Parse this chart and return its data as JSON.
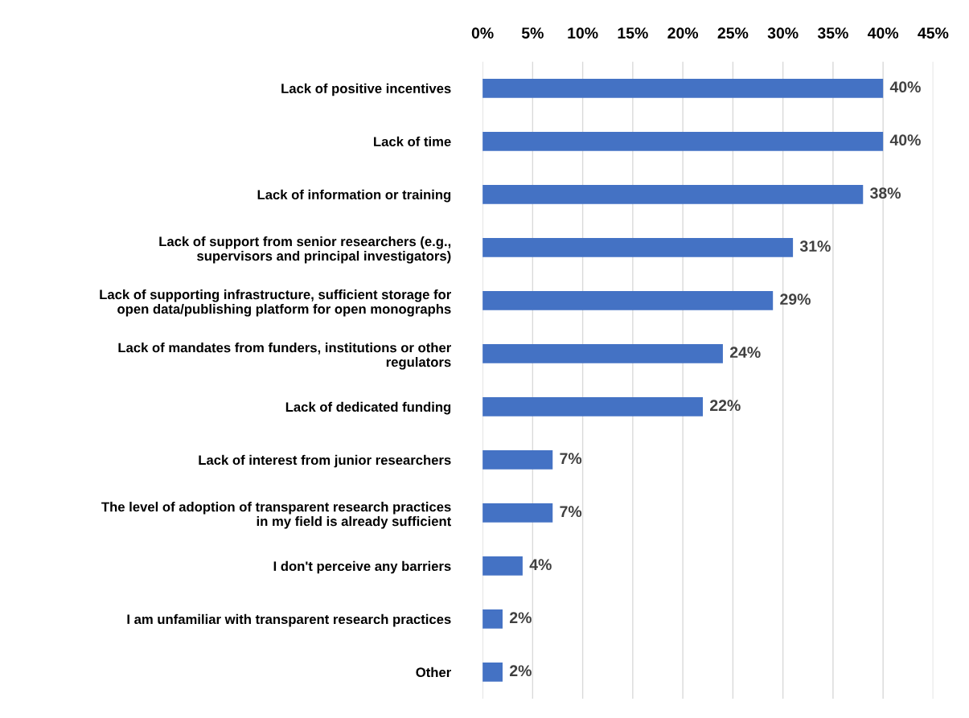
{
  "chart_data": {
    "type": "bar",
    "orientation": "horizontal",
    "categories": [
      "Lack of positive incentives",
      "Lack of time",
      "Lack of information or training",
      "Lack of support from senior researchers (e.g.,\nsupervisors and principal investigators)",
      "Lack of supporting infrastructure, sufficient storage for\nopen data/publishing platform for open monographs",
      "Lack of mandates from funders, institutions or other\nregulators",
      "Lack of dedicated funding",
      "Lack of interest from junior researchers",
      "The level of adoption of transparent research practices\nin my field is already sufficient",
      "I don't perceive any barriers",
      "I am unfamiliar with transparent research practices",
      "Other"
    ],
    "values": [
      40,
      40,
      38,
      31,
      29,
      24,
      22,
      7,
      7,
      4,
      2,
      2
    ],
    "value_labels": [
      "40%",
      "40%",
      "38%",
      "31%",
      "29%",
      "24%",
      "22%",
      "7%",
      "7%",
      "4%",
      "2%",
      "2%"
    ],
    "color": "#4472c4",
    "xlim": [
      0,
      45
    ],
    "xticks": [
      {
        "value": 0,
        "label": "0%"
      },
      {
        "value": 5,
        "label": "5%"
      },
      {
        "value": 10,
        "label": "10%"
      },
      {
        "value": 15,
        "label": "15%"
      },
      {
        "value": 20,
        "label": "20%"
      },
      {
        "value": 25,
        "label": "25%"
      },
      {
        "value": 30,
        "label": "30%"
      },
      {
        "value": 35,
        "label": "35%"
      },
      {
        "value": 40,
        "label": "40%"
      },
      {
        "value": 45,
        "label": "45%"
      }
    ],
    "grid": "x",
    "legend": false
  }
}
